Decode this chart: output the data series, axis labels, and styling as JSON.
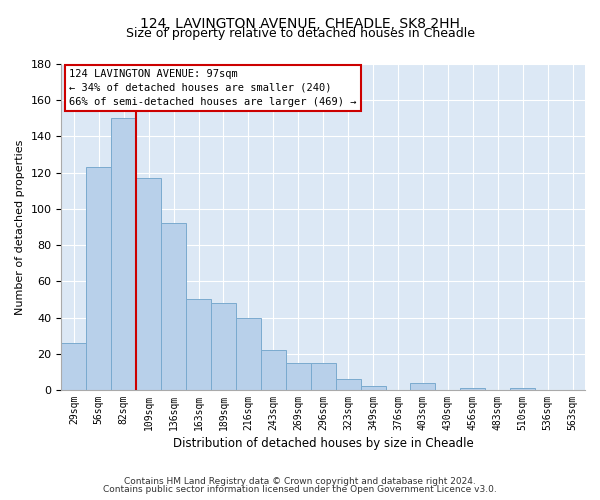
{
  "title": "124, LAVINGTON AVENUE, CHEADLE, SK8 2HH",
  "subtitle": "Size of property relative to detached houses in Cheadle",
  "xlabel": "Distribution of detached houses by size in Cheadle",
  "ylabel": "Number of detached properties",
  "bar_values": [
    26,
    123,
    150,
    117,
    92,
    50,
    48,
    40,
    22,
    15,
    15,
    6,
    2,
    0,
    4,
    0,
    1,
    0,
    1,
    0,
    0
  ],
  "bar_labels": [
    "29sqm",
    "56sqm",
    "82sqm",
    "109sqm",
    "136sqm",
    "163sqm",
    "189sqm",
    "216sqm",
    "243sqm",
    "269sqm",
    "296sqm",
    "323sqm",
    "349sqm",
    "376sqm",
    "403sqm",
    "430sqm",
    "456sqm",
    "483sqm",
    "510sqm",
    "536sqm",
    "563sqm"
  ],
  "bar_color": "#b8d0ea",
  "bar_edge_color": "#7aaacf",
  "vline_color": "#cc0000",
  "annotation_line1": "124 LAVINGTON AVENUE: 97sqm",
  "annotation_line2": "← 34% of detached houses are smaller (240)",
  "annotation_line3": "66% of semi-detached houses are larger (469) →",
  "ylim": [
    0,
    180
  ],
  "yticks": [
    0,
    20,
    40,
    60,
    80,
    100,
    120,
    140,
    160,
    180
  ],
  "footnote1": "Contains HM Land Registry data © Crown copyright and database right 2024.",
  "footnote2": "Contains public sector information licensed under the Open Government Licence v3.0.",
  "plot_bg_color": "#dce8f5",
  "fig_bg_color": "#ffffff",
  "grid_color": "#ffffff",
  "title_fontsize": 10,
  "subtitle_fontsize": 9
}
